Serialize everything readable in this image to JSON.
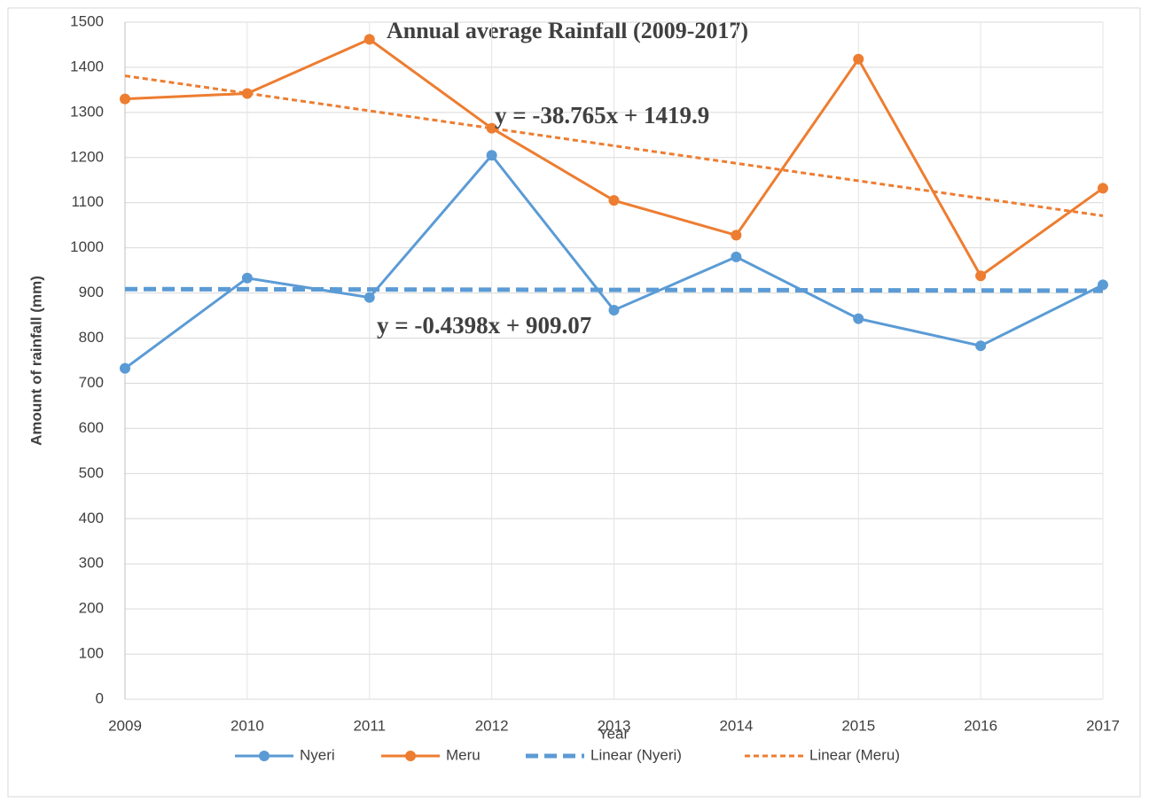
{
  "chart_data": {
    "type": "line",
    "title": "Annual  average Rainfall (2009-2017)",
    "x_label": "Year",
    "y_label": "Amount of rainfall  (mm)",
    "categories": [
      "2009",
      "2010",
      "2011",
      "2012",
      "2013",
      "2014",
      "2015",
      "2016",
      "2017"
    ],
    "series": [
      {
        "name": "Nyeri",
        "color": "#5b9bd5",
        "dash": "solid",
        "marker": true,
        "values": [
          733,
          933,
          890,
          1205,
          862,
          980,
          843,
          783,
          918
        ]
      },
      {
        "name": "Meru",
        "color": "#ed7d31",
        "dash": "solid",
        "marker": true,
        "values": [
          1330,
          1342,
          1462,
          1265,
          1105,
          1028,
          1418,
          938,
          1132
        ]
      },
      {
        "name": "Linear (Nyeri)",
        "color": "#5b9bd5",
        "dash": "long",
        "marker": false,
        "values": [
          908.6,
          908.2,
          907.8,
          907.3,
          906.9,
          906.4,
          906.0,
          905.6,
          905.1
        ]
      },
      {
        "name": "Linear (Meru)",
        "color": "#ed7d31",
        "dash": "short",
        "marker": false,
        "values": [
          1381.1,
          1342.4,
          1303.6,
          1264.8,
          1226.1,
          1187.3,
          1148.5,
          1109.8,
          1071.0
        ]
      }
    ],
    "annotations": [
      "y = -38.765x + 1419.9",
      "y = -0.4398x + 909.07"
    ],
    "ylim": [
      0,
      1500
    ],
    "yticks": [
      0,
      100,
      200,
      300,
      400,
      500,
      600,
      700,
      800,
      900,
      1000,
      1100,
      1200,
      1300,
      1400,
      1500
    ],
    "grid": true,
    "legend": "bottom"
  }
}
